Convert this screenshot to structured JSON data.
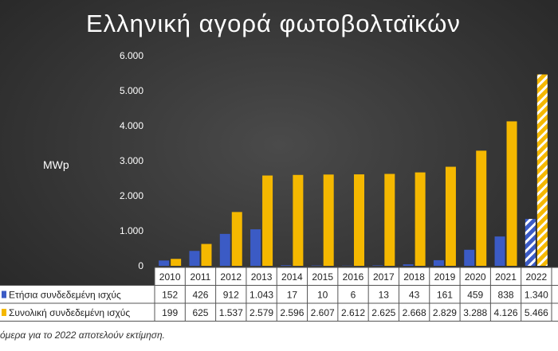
{
  "title": "Ελληνική αγορά φωτοβολταϊκών",
  "ylabel": "MWp",
  "footnote": "όμερα για το 2022 αποτελούν εκτίμηση.",
  "colors": {
    "annual": "#3b5bc5",
    "total": "#f5b800",
    "estimate_stripe": "#ffffff"
  },
  "chart_data": {
    "type": "bar",
    "title": "Ελληνική αγορά φωτοβολταϊκών",
    "xlabel": "",
    "ylabel": "MWp",
    "ylim": [
      0,
      6000
    ],
    "grid": false,
    "legend": "table-bottom",
    "y_ticks": [
      "0",
      "1.000",
      "2.000",
      "3.000",
      "4.000",
      "5.000",
      "6.000"
    ],
    "categories": [
      "2010",
      "2011",
      "2012",
      "2013",
      "2014",
      "2015",
      "2016",
      "2017",
      "2018",
      "2019",
      "2020",
      "2021",
      "2022"
    ],
    "series": [
      {
        "name": "Ετήσια συνδεδεμένη ισχύς",
        "values": [
          152,
          426,
          912,
          1043,
          17,
          10,
          6,
          13,
          43,
          161,
          459,
          838,
          1340
        ],
        "labels": [
          "152",
          "426",
          "912",
          "1.043",
          "17",
          "10",
          "6",
          "13",
          "43",
          "161",
          "459",
          "838",
          "1.340"
        ]
      },
      {
        "name": "Συνολική συνδεδεμένη ισχύς",
        "values": [
          199,
          625,
          1537,
          2579,
          2596,
          2607,
          2612,
          2625,
          2668,
          2829,
          3288,
          4126,
          5466
        ],
        "labels": [
          "199",
          "625",
          "1.537",
          "2.579",
          "2.596",
          "2.607",
          "2.612",
          "2.625",
          "2.668",
          "2.829",
          "3.288",
          "4.126",
          "5.466"
        ]
      }
    ],
    "estimate_category": "2022"
  }
}
